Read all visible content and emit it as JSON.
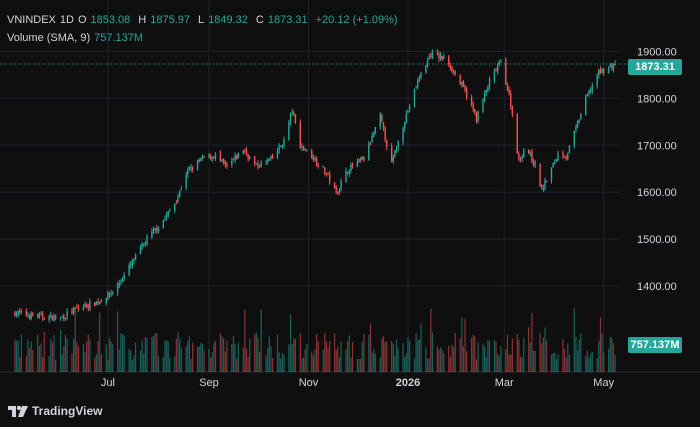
{
  "legend": {
    "symbol": "VNINDEX",
    "interval": "1D",
    "open_label": "O",
    "open": "1853.08",
    "high_label": "H",
    "high": "1875.97",
    "low_label": "L",
    "low": "1849.32",
    "close_label": "C",
    "close": "1873.31",
    "change": "+20.12 (+1.09%)",
    "volume_label": "Volume (SMA, 9)",
    "volume_value": "757.137M"
  },
  "price_tag": "1873.31",
  "volume_tag": "757.137M",
  "brand": {
    "name": "TradingView",
    "icon": "tradingview-logo-icon"
  },
  "colors": {
    "up": "#26a69a",
    "down": "#ef5350",
    "background": "#0f0f0f",
    "grid": "#1e222d",
    "text": "#d1d4dc"
  },
  "chart_data": {
    "type": "candlestick",
    "yticks": [
      "1900.00",
      "1800.00",
      "1700.00",
      "1600.00",
      "1500.00",
      "1400.00"
    ],
    "ylim": [
      1285,
      1935
    ],
    "xticks": [
      {
        "label": "Jul",
        "x": "2025-07-01"
      },
      {
        "label": "Sep",
        "x": "2025-09-01"
      },
      {
        "label": "Nov",
        "x": "2025-11-01"
      },
      {
        "label": "2026",
        "x": "2026-01-01"
      },
      {
        "label": "Mar",
        "x": "2026-03-01"
      },
      {
        "label": "May",
        "x": "2026-05-01"
      }
    ],
    "xlim": [
      "2025-05-02",
      "2026-05-11"
    ],
    "last_close": 1873.31,
    "anchors": [
      [
        "2025-05-05",
        1343
      ],
      [
        "2025-05-20",
        1335
      ],
      [
        "2025-06-02",
        1332
      ],
      [
        "2025-06-12",
        1352
      ],
      [
        "2025-06-25",
        1366
      ],
      [
        "2025-07-05",
        1390
      ],
      [
        "2025-07-15",
        1445
      ],
      [
        "2025-07-25",
        1500
      ],
      [
        "2025-08-05",
        1545
      ],
      [
        "2025-08-12",
        1582
      ],
      [
        "2025-08-18",
        1640
      ],
      [
        "2025-08-28",
        1672
      ],
      [
        "2025-09-05",
        1678
      ],
      [
        "2025-09-12",
        1652
      ],
      [
        "2025-09-22",
        1692
      ],
      [
        "2025-09-30",
        1655
      ],
      [
        "2025-10-10",
        1672
      ],
      [
        "2025-10-17",
        1710
      ],
      [
        "2025-10-22",
        1775
      ],
      [
        "2025-10-27",
        1700
      ],
      [
        "2025-11-05",
        1670
      ],
      [
        "2025-11-12",
        1640
      ],
      [
        "2025-11-18",
        1598
      ],
      [
        "2025-11-25",
        1648
      ],
      [
        "2025-12-05",
        1672
      ],
      [
        "2025-12-15",
        1760
      ],
      [
        "2025-12-22",
        1660
      ],
      [
        "2025-12-30",
        1755
      ],
      [
        "2026-01-08",
        1845
      ],
      [
        "2026-01-15",
        1895
      ],
      [
        "2026-01-25",
        1882
      ],
      [
        "2026-02-05",
        1815
      ],
      [
        "2026-02-12",
        1758
      ],
      [
        "2026-02-20",
        1835
      ],
      [
        "2026-02-27",
        1880
      ],
      [
        "2026-03-05",
        1790
      ],
      [
        "2026-03-10",
        1665
      ],
      [
        "2026-03-14",
        1700
      ],
      [
        "2026-03-20",
        1655
      ],
      [
        "2026-03-24",
        1605
      ],
      [
        "2026-03-30",
        1650
      ],
      [
        "2026-04-04",
        1690
      ],
      [
        "2026-04-08",
        1675
      ],
      [
        "2026-04-14",
        1735
      ],
      [
        "2026-04-20",
        1800
      ],
      [
        "2026-04-28",
        1855
      ],
      [
        "2026-05-08",
        1873
      ]
    ],
    "volume_sma": 757.137
  }
}
